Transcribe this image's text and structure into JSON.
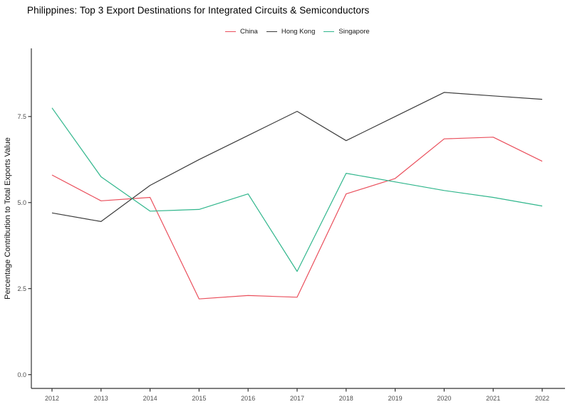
{
  "title": "Philippines: Top 3 Export Destinations for Integrated Circuits & Semiconductors",
  "y_axis_title": "Percentage Contribution to Total Exports Value",
  "colors": {
    "china": "#ea4f5c",
    "hong_kong": "#3c3c3c",
    "singapore": "#30b68c",
    "axis_line": "#333333",
    "axis_text": "#4f4f4f",
    "background": "#ffffff"
  },
  "legend": {
    "items": [
      "China",
      "Hong Kong",
      "Singapore"
    ]
  },
  "chart_data": {
    "type": "line",
    "title": "Philippines: Top 3 Export Destinations for Integrated Circuits & Semiconductors",
    "xlabel": "",
    "ylabel": "Percentage Contribution to Total Exports Value",
    "x": [
      2012,
      2013,
      2014,
      2015,
      2016,
      2017,
      2018,
      2019,
      2020,
      2021,
      2022
    ],
    "series": [
      {
        "name": "China",
        "color": "#ea4f5c",
        "values": [
          5.8,
          5.05,
          5.15,
          2.2,
          2.3,
          2.25,
          5.25,
          5.7,
          6.85,
          6.9,
          6.2
        ]
      },
      {
        "name": "Hong Kong",
        "color": "#3c3c3c",
        "values": [
          4.7,
          4.45,
          5.5,
          6.25,
          6.95,
          7.65,
          6.8,
          7.5,
          8.2,
          8.1,
          8.0
        ]
      },
      {
        "name": "Singapore",
        "color": "#30b68c",
        "values": [
          7.75,
          5.75,
          4.75,
          4.8,
          5.25,
          3.0,
          5.85,
          5.6,
          5.35,
          5.15,
          4.9
        ]
      }
    ],
    "yticks": [
      0.0,
      2.5,
      5.0,
      7.5
    ],
    "ytick_labels": [
      "0.0",
      "2.5",
      "5.0",
      "7.5"
    ],
    "xtick_labels": [
      "2012",
      "2013",
      "2014",
      "2015",
      "2016",
      "2017",
      "2018",
      "2019",
      "2020",
      "2021",
      "2022"
    ],
    "ylim": [
      -0.4,
      9.48
    ],
    "grid": false,
    "legend_position": "top-center"
  }
}
